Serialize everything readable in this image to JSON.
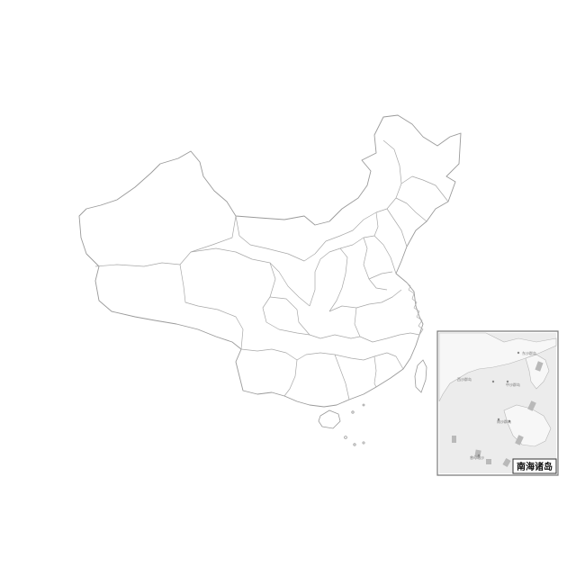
{
  "map": {
    "inset": {
      "title": "南海诸岛",
      "labels": [
        "东沙群岛",
        "西沙群岛",
        "中沙群岛",
        "南沙群岛",
        "曾母暗沙"
      ]
    }
  }
}
